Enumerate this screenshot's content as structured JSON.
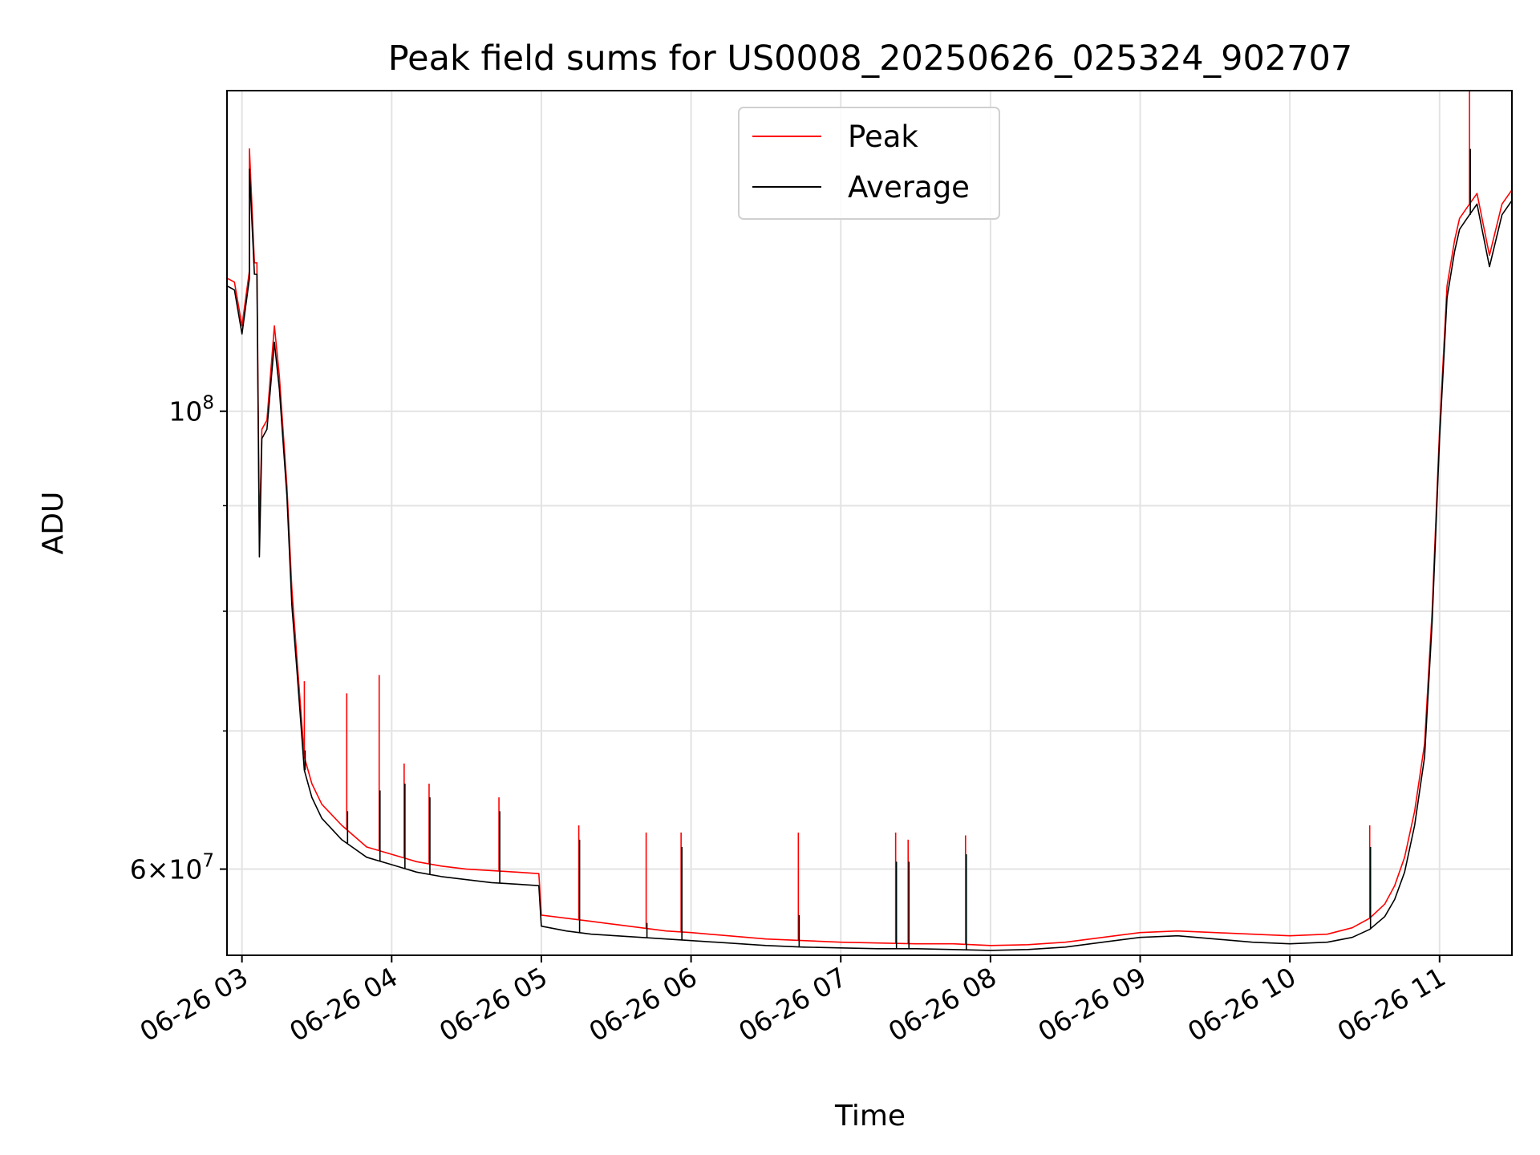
{
  "chart_data": {
    "type": "line",
    "title": "Peak field sums for US0008_20250626_025324_902707",
    "xlabel": "Time",
    "ylabel": "ADU",
    "y_scale": "log",
    "x_ticks": [
      "06-26 03",
      "06-26 04",
      "06-26 05",
      "06-26 06",
      "06-26 07",
      "06-26 08",
      "06-26 09",
      "06-26 10",
      "06-26 11"
    ],
    "y_ticks": [
      {
        "value": 100000000,
        "base": "10",
        "exp": "8",
        "coef": ""
      },
      {
        "value": 60000000,
        "base": "10",
        "exp": "7",
        "coef": "6"
      }
    ],
    "x_range": [
      "2025-06-26 02:54",
      "2025-06-26 11:29"
    ],
    "y_range": [
      54500000,
      143000000
    ],
    "grid": true,
    "legend": {
      "placement": "upper center",
      "entries": [
        "Peak",
        "Average"
      ]
    },
    "colors": {
      "Peak": "#ff0000",
      "Average": "#000000"
    },
    "series": [
      {
        "name": "Peak",
        "x": [
          "2025-06-26 02:54",
          "2025-06-26 02:57",
          "2025-06-26 03:00",
          "2025-06-26 03:03",
          "2025-06-26 03:03",
          "2025-06-26 03:05",
          "2025-06-26 03:06",
          "2025-06-26 03:07",
          "2025-06-26 03:08",
          "2025-06-26 03:10",
          "2025-06-26 03:13",
          "2025-06-26 03:15",
          "2025-06-26 03:18",
          "2025-06-26 03:20",
          "2025-06-26 03:22",
          "2025-06-26 03:25",
          "2025-06-26 03:28",
          "2025-06-26 03:32",
          "2025-06-26 03:40",
          "2025-06-26 03:50",
          "2025-06-26 04:00",
          "2025-06-26 04:10",
          "2025-06-26 04:20",
          "2025-06-26 04:30",
          "2025-06-26 04:40",
          "2025-06-26 04:50",
          "2025-06-26 04:59",
          "2025-06-26 05:00",
          "2025-06-26 05:10",
          "2025-06-26 05:20",
          "2025-06-26 05:30",
          "2025-06-26 05:40",
          "2025-06-26 05:50",
          "2025-06-26 06:00",
          "2025-06-26 06:15",
          "2025-06-26 06:30",
          "2025-06-26 06:45",
          "2025-06-26 07:00",
          "2025-06-26 07:15",
          "2025-06-26 07:30",
          "2025-06-26 07:45",
          "2025-06-26 08:00",
          "2025-06-26 08:15",
          "2025-06-26 08:30",
          "2025-06-26 08:45",
          "2025-06-26 09:00",
          "2025-06-26 09:15",
          "2025-06-26 09:30",
          "2025-06-26 09:45",
          "2025-06-26 10:00",
          "2025-06-26 10:15",
          "2025-06-26 10:25",
          "2025-06-26 10:32",
          "2025-06-26 10:38",
          "2025-06-26 10:42",
          "2025-06-26 10:46",
          "2025-06-26 10:50",
          "2025-06-26 10:54",
          "2025-06-26 10:57",
          "2025-06-26 11:00",
          "2025-06-26 11:03",
          "2025-06-26 11:06",
          "2025-06-26 11:08",
          "2025-06-26 11:10",
          "2025-06-26 11:12",
          "2025-06-26 11:15",
          "2025-06-26 11:20",
          "2025-06-26 11:25",
          "2025-06-26 11:29"
        ],
        "y": [
          116000000,
          115500000,
          110000000,
          117000000,
          134000000,
          118000000,
          118000000,
          87000000,
          98000000,
          99000000,
          110000000,
          104000000,
          92000000,
          82000000,
          76000000,
          68000000,
          66000000,
          64500000,
          63000000,
          61500000,
          61000000,
          60500000,
          60200000,
          60000000,
          59900000,
          59800000,
          59700000,
          57000000,
          56800000,
          56600000,
          56400000,
          56200000,
          56000000,
          55900000,
          55700000,
          55500000,
          55400000,
          55300000,
          55250000,
          55200000,
          55200000,
          55100000,
          55150000,
          55300000,
          55600000,
          55900000,
          56000000,
          55900000,
          55800000,
          55700000,
          55800000,
          56200000,
          56800000,
          57700000,
          58900000,
          60800000,
          64000000,
          69000000,
          80000000,
          98000000,
          115000000,
          121000000,
          124000000,
          125000000,
          126000000,
          127500000,
          119000000,
          126000000,
          128000000
        ]
      },
      {
        "name": "Average",
        "x": [
          "2025-06-26 02:54",
          "2025-06-26 02:57",
          "2025-06-26 03:00",
          "2025-06-26 03:03",
          "2025-06-26 03:03",
          "2025-06-26 03:05",
          "2025-06-26 03:06",
          "2025-06-26 03:07",
          "2025-06-26 03:08",
          "2025-06-26 03:10",
          "2025-06-26 03:13",
          "2025-06-26 03:15",
          "2025-06-26 03:18",
          "2025-06-26 03:20",
          "2025-06-26 03:22",
          "2025-06-26 03:25",
          "2025-06-26 03:28",
          "2025-06-26 03:32",
          "2025-06-26 03:40",
          "2025-06-26 03:50",
          "2025-06-26 04:00",
          "2025-06-26 04:10",
          "2025-06-26 04:20",
          "2025-06-26 04:30",
          "2025-06-26 04:40",
          "2025-06-26 04:50",
          "2025-06-26 04:59",
          "2025-06-26 05:00",
          "2025-06-26 05:10",
          "2025-06-26 05:20",
          "2025-06-26 05:30",
          "2025-06-26 05:40",
          "2025-06-26 05:50",
          "2025-06-26 06:00",
          "2025-06-26 06:15",
          "2025-06-26 06:30",
          "2025-06-26 06:45",
          "2025-06-26 07:00",
          "2025-06-26 07:15",
          "2025-06-26 07:30",
          "2025-06-26 07:45",
          "2025-06-26 08:00",
          "2025-06-26 08:15",
          "2025-06-26 08:30",
          "2025-06-26 08:45",
          "2025-06-26 09:00",
          "2025-06-26 09:15",
          "2025-06-26 09:30",
          "2025-06-26 09:45",
          "2025-06-26 10:00",
          "2025-06-26 10:15",
          "2025-06-26 10:25",
          "2025-06-26 10:32",
          "2025-06-26 10:38",
          "2025-06-26 10:42",
          "2025-06-26 10:46",
          "2025-06-26 10:50",
          "2025-06-26 10:54",
          "2025-06-26 10:57",
          "2025-06-26 11:00",
          "2025-06-26 11:03",
          "2025-06-26 11:06",
          "2025-06-26 11:08",
          "2025-06-26 11:10",
          "2025-06-26 11:12",
          "2025-06-26 11:15",
          "2025-06-26 11:20",
          "2025-06-26 11:25",
          "2025-06-26 11:29"
        ],
        "y": [
          115000000,
          114500000,
          109000000,
          116000000,
          131000000,
          116500000,
          116500000,
          85000000,
          97000000,
          98000000,
          108000000,
          102500000,
          91000000,
          80500000,
          75000000,
          67000000,
          65000000,
          63500000,
          62000000,
          60800000,
          60300000,
          59800000,
          59500000,
          59300000,
          59100000,
          59000000,
          58900000,
          56300000,
          56000000,
          55800000,
          55700000,
          55600000,
          55500000,
          55400000,
          55250000,
          55100000,
          55000000,
          54950000,
          54900000,
          54900000,
          54850000,
          54800000,
          54850000,
          55000000,
          55300000,
          55600000,
          55700000,
          55500000,
          55300000,
          55200000,
          55300000,
          55600000,
          56100000,
          56900000,
          58000000,
          59800000,
          63000000,
          68000000,
          79000000,
          97000000,
          113500000,
          119500000,
          122500000,
          123500000,
          124500000,
          126000000,
          117500000,
          124500000,
          126500000
        ]
      }
    ],
    "spikes": [
      {
        "x": "2025-06-26 03:25",
        "peak": 74000000,
        "average": 68500000
      },
      {
        "x": "2025-06-26 03:42",
        "peak": 73000000,
        "average": 64000000
      },
      {
        "x": "2025-06-26 03:55",
        "peak": 74500000,
        "average": 65500000
      },
      {
        "x": "2025-06-26 04:05",
        "peak": 67500000,
        "average": 66000000
      },
      {
        "x": "2025-06-26 04:15",
        "peak": 66000000,
        "average": 65000000
      },
      {
        "x": "2025-06-26 04:43",
        "peak": 65000000,
        "average": 64000000
      },
      {
        "x": "2025-06-26 05:15",
        "peak": 63000000,
        "average": 62000000
      },
      {
        "x": "2025-06-26 05:42",
        "peak": 62500000,
        "average": 56500000
      },
      {
        "x": "2025-06-26 05:56",
        "peak": 62500000,
        "average": 61500000
      },
      {
        "x": "2025-06-26 06:43",
        "peak": 62500000,
        "average": 57000000
      },
      {
        "x": "2025-06-26 07:22",
        "peak": 62500000,
        "average": 60500000
      },
      {
        "x": "2025-06-26 07:27",
        "peak": 62000000,
        "average": 60500000
      },
      {
        "x": "2025-06-26 07:50",
        "peak": 62300000,
        "average": 61000000
      },
      {
        "x": "2025-06-26 10:32",
        "peak": 63000000,
        "average": 61500000
      },
      {
        "x": "2025-06-26 11:12",
        "peak": 143000000,
        "average": 134000000
      }
    ]
  }
}
